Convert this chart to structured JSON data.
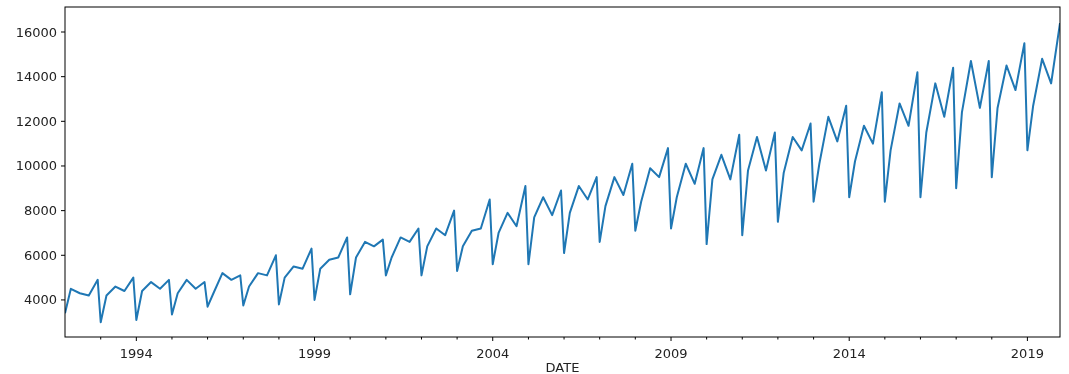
{
  "chart_data": {
    "type": "line",
    "xlabel": "DATE",
    "x": [
      "1992-01",
      "1992-03",
      "1992-06",
      "1992-09",
      "1992-12",
      "1993-01",
      "1993-03",
      "1993-06",
      "1993-09",
      "1993-12",
      "1994-01",
      "1994-03",
      "1994-06",
      "1994-09",
      "1994-12",
      "1995-01",
      "1995-03",
      "1995-06",
      "1995-09",
      "1995-12",
      "1996-01",
      "1996-03",
      "1996-06",
      "1996-09",
      "1996-12",
      "1997-01",
      "1997-03",
      "1997-06",
      "1997-09",
      "1997-12",
      "1998-01",
      "1998-03",
      "1998-06",
      "1998-09",
      "1998-12",
      "1999-01",
      "1999-03",
      "1999-06",
      "1999-09",
      "1999-12",
      "2000-01",
      "2000-03",
      "2000-06",
      "2000-09",
      "2000-12",
      "2001-01",
      "2001-03",
      "2001-06",
      "2001-09",
      "2001-12",
      "2002-01",
      "2002-03",
      "2002-06",
      "2002-09",
      "2002-12",
      "2003-01",
      "2003-03",
      "2003-06",
      "2003-09",
      "2003-12",
      "2004-01",
      "2004-03",
      "2004-06",
      "2004-09",
      "2004-12",
      "2005-01",
      "2005-03",
      "2005-06",
      "2005-09",
      "2005-12",
      "2006-01",
      "2006-03",
      "2006-06",
      "2006-09",
      "2006-12",
      "2007-01",
      "2007-03",
      "2007-06",
      "2007-09",
      "2007-12",
      "2008-01",
      "2008-03",
      "2008-06",
      "2008-09",
      "2008-12",
      "2009-01",
      "2009-03",
      "2009-06",
      "2009-09",
      "2009-12",
      "2010-01",
      "2010-03",
      "2010-06",
      "2010-09",
      "2010-12",
      "2011-01",
      "2011-03",
      "2011-06",
      "2011-09",
      "2011-12",
      "2012-01",
      "2012-03",
      "2012-06",
      "2012-09",
      "2012-12",
      "2013-01",
      "2013-03",
      "2013-06",
      "2013-09",
      "2013-12",
      "2014-01",
      "2014-03",
      "2014-06",
      "2014-09",
      "2014-12",
      "2015-01",
      "2015-03",
      "2015-06",
      "2015-09",
      "2015-12",
      "2016-01",
      "2016-03",
      "2016-06",
      "2016-09",
      "2016-12",
      "2017-01",
      "2017-03",
      "2017-06",
      "2017-09",
      "2017-12",
      "2018-01",
      "2018-03",
      "2018-06",
      "2018-09",
      "2018-12",
      "2019-01",
      "2019-03",
      "2019-06",
      "2019-09",
      "2019-12"
    ],
    "series": [
      {
        "color": "#1f77b4",
        "values": [
          3400,
          4500,
          4300,
          4200,
          4900,
          3000,
          4200,
          4600,
          4400,
          5000,
          3100,
          4400,
          4800,
          4500,
          4900,
          3350,
          4300,
          4900,
          4500,
          4800,
          3700,
          4300,
          5200,
          4900,
          5100,
          3750,
          4600,
          5200,
          5100,
          6000,
          3800,
          5000,
          5500,
          5400,
          6300,
          4000,
          5400,
          5800,
          5900,
          6800,
          4250,
          5900,
          6600,
          6400,
          6700,
          5100,
          5900,
          6800,
          6600,
          7200,
          5100,
          6400,
          7200,
          6900,
          8000,
          5300,
          6400,
          7100,
          7200,
          8500,
          5600,
          7000,
          7900,
          7300,
          9100,
          5600,
          7700,
          8600,
          7800,
          8900,
          6100,
          7900,
          9100,
          8500,
          9500,
          6600,
          8200,
          9500,
          8700,
          10100,
          7100,
          8400,
          9900,
          9500,
          10800,
          7200,
          8600,
          10100,
          9200,
          10800,
          6500,
          9400,
          10500,
          9400,
          11400,
          6900,
          9800,
          11300,
          9800,
          11500,
          7500,
          9700,
          11300,
          10700,
          11900,
          8400,
          10100,
          12200,
          11100,
          12700,
          8600,
          10200,
          11800,
          11000,
          13300,
          8400,
          10700,
          12800,
          11800,
          14200,
          8600,
          11500,
          13700,
          12200,
          14400,
          9000,
          12400,
          14700,
          12600,
          14700,
          9500,
          12600,
          14500,
          13400,
          15500,
          10700,
          12700,
          14800,
          13700,
          16400
        ]
      }
    ],
    "xlim": [
      "1992-01",
      "2019-12"
    ],
    "xticks": [
      {
        "value": "1993-01",
        "label": null
      },
      {
        "value": "1994-01",
        "label": "1994"
      },
      {
        "value": "1995-01",
        "label": null
      },
      {
        "value": "1996-01",
        "label": null
      },
      {
        "value": "1997-01",
        "label": null
      },
      {
        "value": "1998-01",
        "label": null
      },
      {
        "value": "1999-01",
        "label": "1999"
      },
      {
        "value": "2000-01",
        "label": null
      },
      {
        "value": "2001-01",
        "label": null
      },
      {
        "value": "2002-01",
        "label": null
      },
      {
        "value": "2003-01",
        "label": null
      },
      {
        "value": "2004-01",
        "label": "2004"
      },
      {
        "value": "2005-01",
        "label": null
      },
      {
        "value": "2006-01",
        "label": null
      },
      {
        "value": "2007-01",
        "label": null
      },
      {
        "value": "2008-01",
        "label": null
      },
      {
        "value": "2009-01",
        "label": "2009"
      },
      {
        "value": "2010-01",
        "label": null
      },
      {
        "value": "2011-01",
        "label": null
      },
      {
        "value": "2012-01",
        "label": null
      },
      {
        "value": "2013-01",
        "label": null
      },
      {
        "value": "2014-01",
        "label": "2014"
      },
      {
        "value": "2015-01",
        "label": null
      },
      {
        "value": "2016-01",
        "label": null
      },
      {
        "value": "2017-01",
        "label": null
      },
      {
        "value": "2018-01",
        "label": null
      },
      {
        "value": "2019-01",
        "label": "2019"
      }
    ],
    "ylim": [
      2340,
      17120
    ],
    "yticks": [
      4000,
      6000,
      8000,
      10000,
      12000,
      14000,
      16000
    ]
  }
}
